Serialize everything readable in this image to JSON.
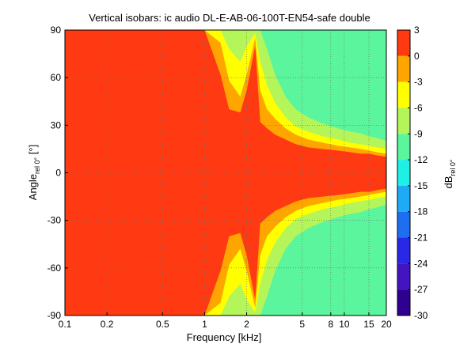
{
  "chart_data": {
    "type": "heatmap",
    "title": "Vertical isobars: ic audio  DL-E-AB-06-100T-EN54-safe  double",
    "xlabel": "Frequency [kHz]",
    "ylabel": {
      "main": "Angle",
      "sub": "rel 0°",
      "suffix": " [°]"
    },
    "x_scale": "log",
    "xlim": [
      0.1,
      20
    ],
    "ylim": [
      -90,
      90
    ],
    "x_ticks": [
      0.1,
      0.2,
      0.5,
      1,
      2,
      5,
      8,
      10,
      15,
      20
    ],
    "x_tick_labels": [
      "0.1",
      "0.2",
      "0.5",
      "1",
      "2",
      "5",
      "8",
      "10",
      "15",
      "20"
    ],
    "y_ticks": [
      -90,
      -60,
      -30,
      0,
      30,
      60,
      90
    ],
    "y_tick_labels": [
      "-90",
      "-60",
      "-30",
      "0",
      "30",
      "60",
      "90"
    ],
    "grid": true,
    "colorbar": {
      "label": {
        "main": "dB",
        "sub": "rel 0°"
      },
      "levels": [
        3,
        0,
        -3,
        -6,
        -9,
        -12,
        -15,
        -18,
        -21,
        -24,
        -27,
        -30
      ],
      "level_labels": [
        "3",
        "0",
        "-3",
        "-6",
        "-9",
        "-12",
        "-15",
        "-18",
        "-21",
        "-24",
        "-27",
        "-30"
      ],
      "band_colors": [
        "#ff3a12",
        "#ff3a12",
        "#ffa500",
        "#ffff00",
        "#b4f55a",
        "#5af59c",
        "#1ef0e6",
        "#1eaaf5",
        "#1e6ef0",
        "#2828e6",
        "#4414c0",
        "#300090"
      ]
    },
    "contours_by_frequency_kHz": {
      "x": [
        0.1,
        1.0,
        1.3,
        1.5,
        1.8,
        2.0,
        2.3,
        2.5,
        2.8,
        3.2,
        3.8,
        4.5,
        5.5,
        7.0,
        9.0,
        11.0,
        13.0,
        15.0,
        17.0,
        20.0
      ],
      "levels_dB": [
        -3,
        -6,
        -9,
        -12
      ],
      "beamwidth_deg": [
        [
          90,
          90,
          62,
          40,
          38,
          52,
          80,
          32,
          28,
          24,
          21,
          18,
          16,
          15,
          14,
          13,
          12,
          12,
          11,
          10
        ],
        [
          90,
          90,
          82,
          58,
          48,
          62,
          85,
          52,
          40,
          34,
          28,
          24,
          21,
          19,
          17,
          16,
          15,
          14,
          13,
          12
        ],
        [
          90,
          90,
          90,
          78,
          70,
          80,
          88,
          70,
          55,
          44,
          35,
          29,
          26,
          23,
          21,
          19,
          18,
          17,
          16,
          15
        ],
        [
          90,
          90,
          90,
          90,
          90,
          90,
          90,
          90,
          78,
          62,
          48,
          40,
          35,
          31,
          28,
          26,
          25,
          23,
          22,
          20
        ]
      ]
    }
  }
}
